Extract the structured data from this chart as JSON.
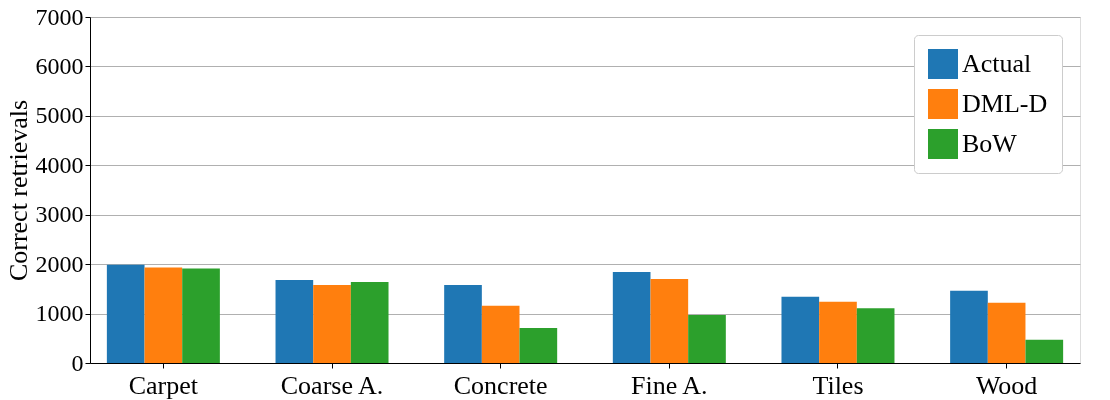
{
  "chart_data": {
    "type": "bar",
    "ylabel": "Correct retrievals",
    "categories": [
      "Carpet",
      "Coarse A.",
      "Concrete",
      "Fine A.",
      "Tiles",
      "Wood"
    ],
    "series": [
      {
        "name": "Actual",
        "color": "#1f77b4",
        "values": [
          1990,
          1680,
          1580,
          1840,
          1340,
          1460
        ]
      },
      {
        "name": "DML-D",
        "color": "#ff7f0e",
        "values": [
          1930,
          1580,
          1160,
          1700,
          1240,
          1220
        ]
      },
      {
        "name": "BoW",
        "color": "#2ca02c",
        "values": [
          1910,
          1640,
          710,
          970,
          1110,
          470
        ]
      }
    ],
    "ylim": [
      0,
      7000
    ],
    "yticks": [
      0,
      1000,
      2000,
      3000,
      4000,
      5000,
      6000,
      7000
    ],
    "grid": "y",
    "legend": "top right"
  }
}
